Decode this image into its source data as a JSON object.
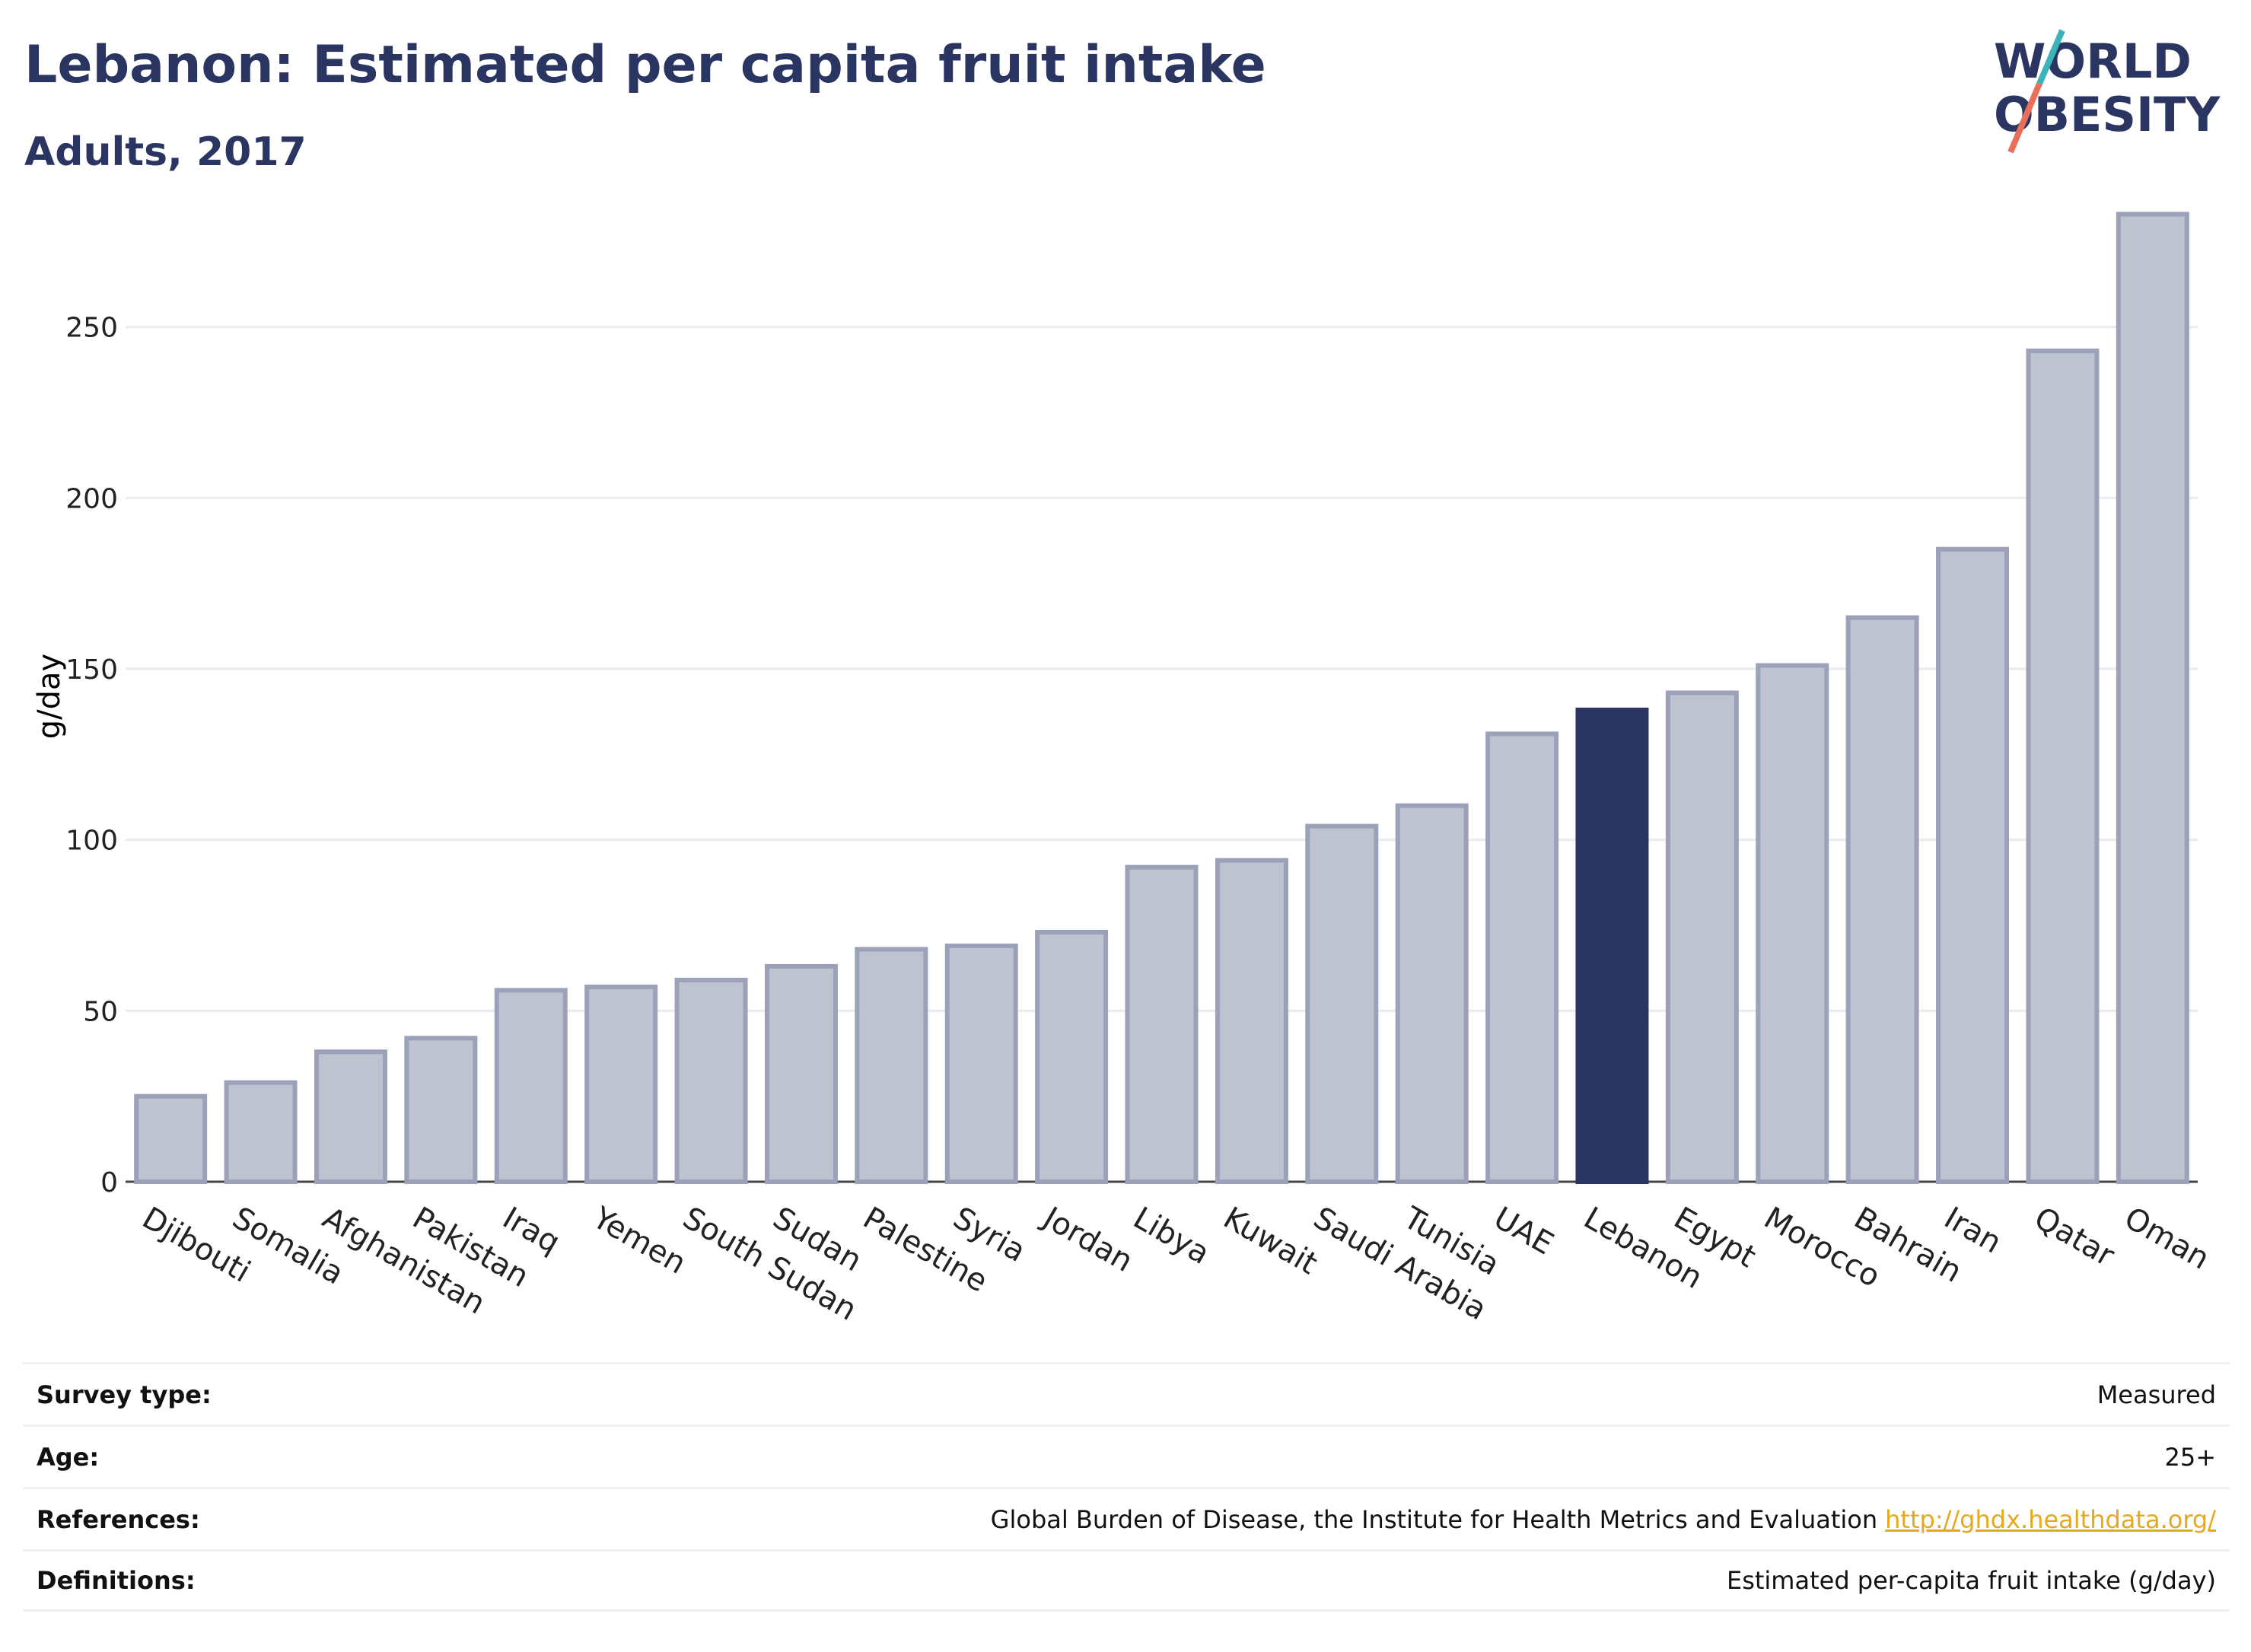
{
  "title": "Lebanon: Estimated per capita fruit intake",
  "subtitle": "Adults, 2017",
  "logo": {
    "line1": "WORLD",
    "line2": "OBESITY",
    "accent_teal": "#3bb3b8",
    "accent_coral": "#e8705a",
    "text_color": "#2b3561"
  },
  "chart_data": {
    "type": "bar",
    "ylabel": "g/day",
    "ylim": [
      0,
      290
    ],
    "yticks": [
      0,
      50,
      100,
      150,
      200,
      250
    ],
    "grid": true,
    "highlight": "Lebanon",
    "colors": {
      "bar": "#bfc3d0",
      "bar_edge": "#9ba1b8",
      "highlight": "#2b3561"
    },
    "categories": [
      "Djibouti",
      "Somalia",
      "Afghanistan",
      "Pakistan",
      "Iraq",
      "Yemen",
      "South Sudan",
      "Sudan",
      "Palestine",
      "Syria",
      "Jordan",
      "Libya",
      "Kuwait",
      "Saudi Arabia",
      "Tunisia",
      "UAE",
      "Lebanon",
      "Egypt",
      "Morocco",
      "Bahrain",
      "Iran",
      "Qatar",
      "Oman"
    ],
    "values": [
      25,
      29,
      38,
      42,
      56,
      57,
      59,
      63,
      68,
      69,
      73,
      92,
      94,
      104,
      110,
      131,
      138,
      143,
      151,
      165,
      185,
      243,
      283
    ]
  },
  "info": [
    {
      "label": "Survey type:",
      "value": "Measured"
    },
    {
      "label": "Age:",
      "value": "25+"
    },
    {
      "label": "References:",
      "value": "Global Burden of Disease, the Institute for Health Metrics and Evaluation",
      "link": "http://ghdx.healthdata.org/"
    },
    {
      "label": "Definitions:",
      "value": "Estimated per-capita fruit intake (g/day)"
    }
  ]
}
